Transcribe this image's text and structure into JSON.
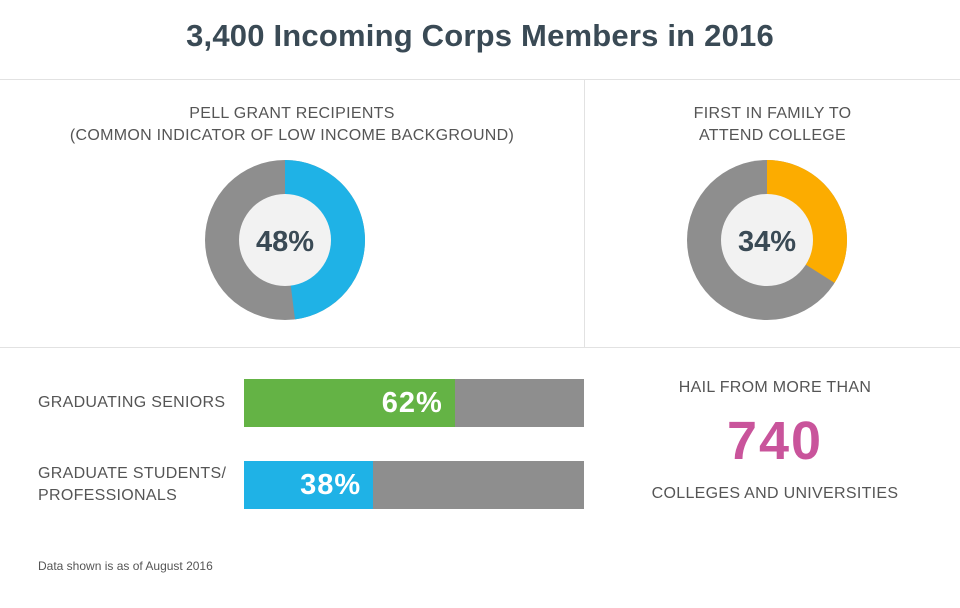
{
  "title": "3,400 Incoming Corps Members in 2016",
  "colors": {
    "blue": "#1fb2e6",
    "orange": "#fcac00",
    "green": "#64b345",
    "gray": "#8e8e8e",
    "pink": "#c9549b",
    "center": "#f2f2f2"
  },
  "chart_data": [
    {
      "type": "pie",
      "title": [
        "PELL GRANT RECIPIENTS",
        "(COMMON INDICATOR OF LOW INCOME BACKGROUND)"
      ],
      "value": 48,
      "label": "48%",
      "color": "#1fb2e6"
    },
    {
      "type": "pie",
      "title": [
        "FIRST IN FAMILY TO",
        "ATTEND COLLEGE"
      ],
      "value": 34,
      "label": "34%",
      "color": "#fcac00"
    },
    {
      "type": "bar",
      "categories": [
        [
          "GRADUATING SENIORS"
        ],
        [
          "GRADUATE STUDENTS/",
          "PROFESSIONALS"
        ]
      ],
      "values": [
        62,
        38
      ],
      "labels": [
        "62%",
        "38%"
      ],
      "colors": [
        "#64b345",
        "#1fb2e6"
      ],
      "ylim": [
        0,
        100
      ]
    }
  ],
  "colleges": {
    "top_text": "HAIL FROM MORE THAN",
    "number": "740",
    "bottom_text": "COLLEGES AND UNIVERSITIES"
  },
  "footnote": "Data shown is as of August 2016"
}
